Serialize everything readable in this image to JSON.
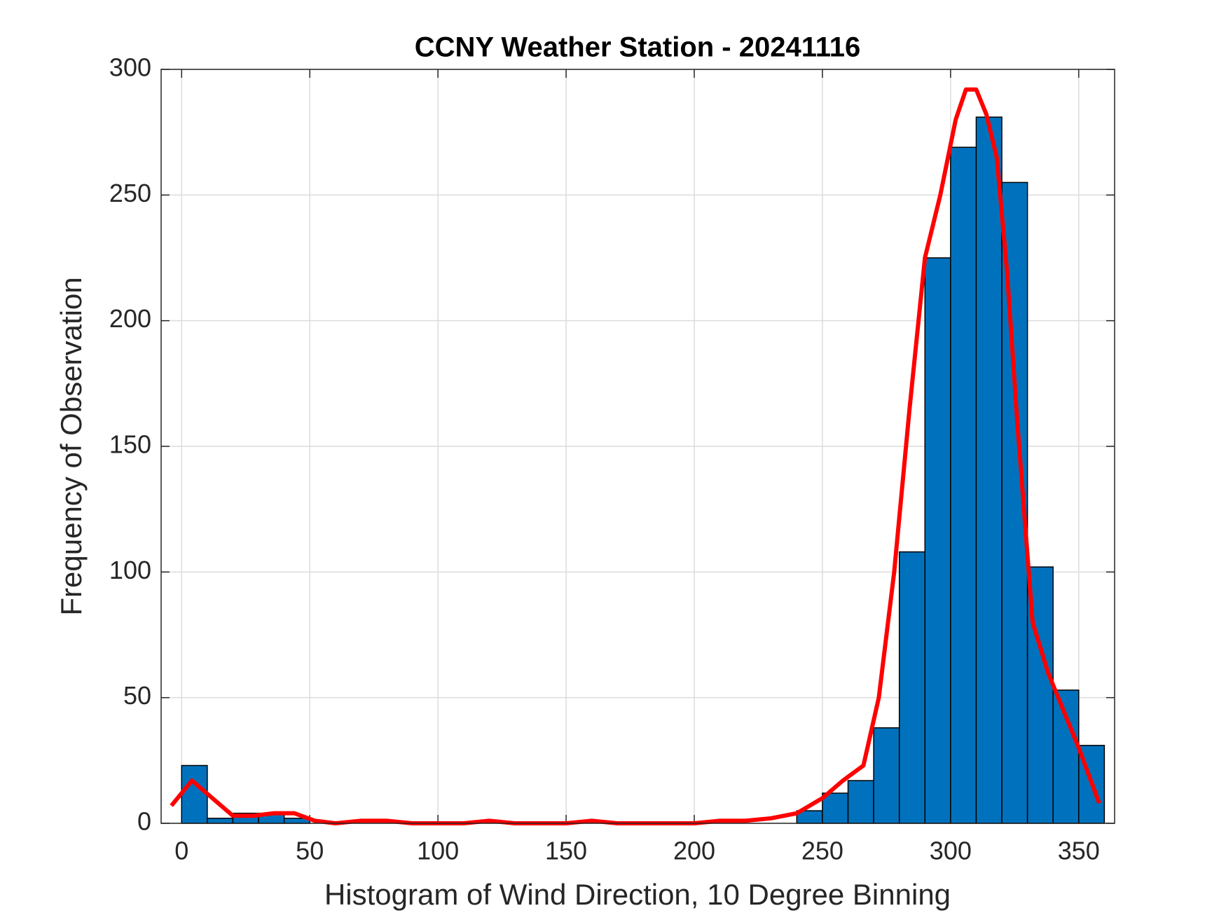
{
  "chart_data": {
    "type": "histogram",
    "title": "CCNY Weather Station - 20241116",
    "xlabel": "Histogram of Wind Direction, 10 Degree Binning",
    "ylabel": "Frequency of Observation",
    "bins": [
      0,
      10,
      20,
      30,
      40,
      50,
      60,
      70,
      80,
      90,
      100,
      110,
      120,
      130,
      140,
      150,
      160,
      170,
      180,
      190,
      200,
      210,
      220,
      230,
      240,
      250,
      260,
      270,
      280,
      290,
      300,
      310,
      320,
      330,
      340,
      350,
      360
    ],
    "values": [
      23,
      2,
      4,
      4,
      2,
      0,
      0,
      0,
      0,
      0,
      0,
      0,
      0,
      0,
      0,
      0,
      0,
      0,
      0,
      0,
      0,
      0,
      0,
      0,
      5,
      12,
      17,
      38,
      108,
      225,
      269,
      281,
      255,
      102,
      53,
      31
    ],
    "color": "#0072BD",
    "edgecolor": "#000000",
    "line": {
      "color": "#ff0000",
      "x": [
        -4,
        4,
        12,
        20,
        28,
        36,
        44,
        52,
        60,
        70,
        80,
        90,
        100,
        110,
        120,
        130,
        140,
        150,
        160,
        170,
        180,
        190,
        200,
        210,
        220,
        230,
        240,
        250,
        258,
        266,
        272,
        278,
        284,
        290,
        296,
        302,
        306,
        310,
        314,
        318,
        322,
        326,
        332,
        338,
        344,
        350,
        358
      ],
      "values": [
        7,
        17,
        10,
        3,
        3,
        4,
        4,
        1,
        0,
        1,
        1,
        0,
        0,
        0,
        1,
        0,
        0,
        0,
        1,
        0,
        0,
        0,
        0,
        1,
        1,
        2,
        4,
        10,
        17,
        23,
        50,
        100,
        165,
        225,
        250,
        280,
        292,
        292,
        282,
        265,
        220,
        160,
        80,
        60,
        45,
        30,
        8
      ]
    },
    "xlim": [
      -8,
      364
    ],
    "ylim": [
      0,
      300
    ],
    "xticks": [
      0,
      50,
      100,
      150,
      200,
      250,
      300,
      350
    ],
    "yticks": [
      0,
      50,
      100,
      150,
      200,
      250,
      300
    ],
    "grid": true
  }
}
